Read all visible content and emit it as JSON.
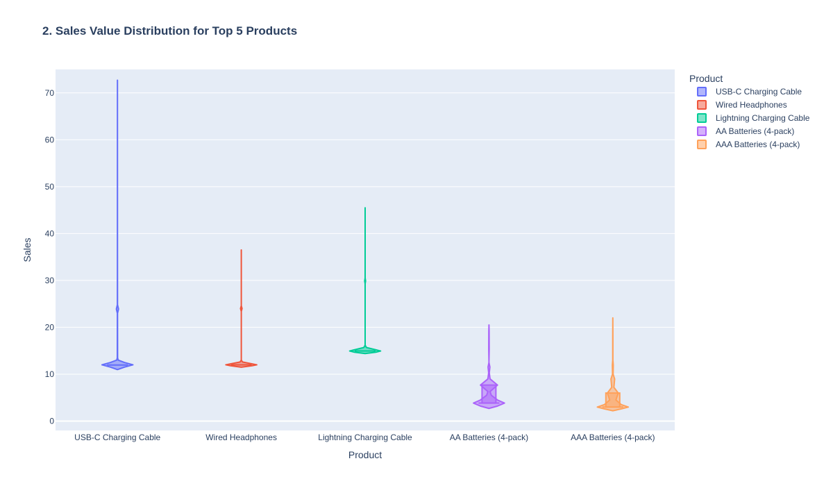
{
  "chart_data": {
    "type": "violin",
    "title": "2. Sales Value Distribution for Top 5 Products",
    "xlabel": "Product",
    "ylabel": "Sales",
    "ylim": [
      -2,
      75
    ],
    "yticks": [
      0,
      10,
      20,
      30,
      40,
      50,
      60,
      70
    ],
    "grid": true,
    "legend_title": "Product",
    "legend_position": "top-right",
    "categories": [
      "USB-C Charging Cable",
      "Wired Headphones",
      "Lightning Charging Cable",
      "AA Batteries (4-pack)",
      "AAA Batteries (4-pack)"
    ],
    "series": [
      {
        "name": "USB-C Charging Cable",
        "color": "#636efa",
        "min": 11.95,
        "q1": 11.95,
        "median": 11.95,
        "q3": 11.95,
        "max": 71.7,
        "density": [
          [
            11.0,
            0.02
          ],
          [
            11.5,
            0.45
          ],
          [
            12.0,
            1.0
          ],
          [
            12.5,
            0.45
          ],
          [
            13.0,
            0.05
          ],
          [
            13.5,
            0.01
          ],
          [
            23.0,
            0.005
          ],
          [
            23.9,
            0.07
          ],
          [
            24.8,
            0.005
          ],
          [
            35.8,
            0.002
          ],
          [
            47.8,
            0.002
          ],
          [
            59.7,
            0.001
          ],
          [
            72.7,
            0.0
          ]
        ]
      },
      {
        "name": "Wired Headphones",
        "color": "#ef553b",
        "min": 11.99,
        "q1": 11.99,
        "median": 11.99,
        "q3": 11.99,
        "max": 35.97,
        "density": [
          [
            11.5,
            0.0
          ],
          [
            11.8,
            0.7
          ],
          [
            12.0,
            1.0
          ],
          [
            12.2,
            0.7
          ],
          [
            12.6,
            0.08
          ],
          [
            13.0,
            0.0
          ],
          [
            23.4,
            0.0
          ],
          [
            24.0,
            0.05
          ],
          [
            24.6,
            0.0
          ],
          [
            36.5,
            0.0
          ]
        ]
      },
      {
        "name": "Lightning Charging Cable",
        "color": "#00cc96",
        "min": 14.95,
        "q1": 14.95,
        "median": 14.95,
        "q3": 14.95,
        "max": 44.85,
        "density": [
          [
            14.4,
            0.0
          ],
          [
            14.7,
            0.7
          ],
          [
            14.95,
            1.0
          ],
          [
            15.2,
            0.7
          ],
          [
            15.7,
            0.08
          ],
          [
            16.2,
            0.0
          ],
          [
            29.3,
            0.0
          ],
          [
            29.9,
            0.03
          ],
          [
            30.5,
            0.0
          ],
          [
            45.5,
            0.0
          ]
        ]
      },
      {
        "name": "AA Batteries (4-pack)",
        "color": "#ab63fa",
        "min": 3.84,
        "q1": 3.84,
        "median": 3.84,
        "q3": 7.68,
        "max": 19.2,
        "density": [
          [
            2.7,
            0.0
          ],
          [
            3.2,
            0.55
          ],
          [
            3.84,
            1.0
          ],
          [
            4.5,
            0.55
          ],
          [
            5.5,
            0.15
          ],
          [
            6.3,
            0.07
          ],
          [
            7.68,
            0.55
          ],
          [
            9.0,
            0.07
          ],
          [
            10.3,
            0.02
          ],
          [
            11.52,
            0.06
          ],
          [
            12.5,
            0.0
          ],
          [
            15.36,
            0.015
          ],
          [
            19.2,
            0.01
          ],
          [
            20.5,
            0.0
          ]
        ]
      },
      {
        "name": "AAA Batteries (4-pack)",
        "color": "#ffa15a",
        "min": 2.99,
        "q1": 2.99,
        "median": 2.99,
        "q3": 5.98,
        "max": 20.93,
        "density": [
          [
            2.2,
            0.0
          ],
          [
            2.6,
            0.55
          ],
          [
            2.99,
            1.0
          ],
          [
            3.5,
            0.55
          ],
          [
            4.5,
            0.2
          ],
          [
            5.98,
            0.35
          ],
          [
            7.2,
            0.07
          ],
          [
            8.97,
            0.12
          ],
          [
            10.0,
            0.02
          ],
          [
            11.96,
            0.03
          ],
          [
            13.0,
            0.005
          ],
          [
            17.94,
            0.005
          ],
          [
            22.0,
            0.0
          ]
        ]
      }
    ]
  }
}
